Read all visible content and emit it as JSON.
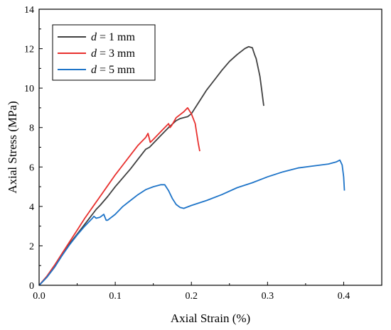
{
  "chart_data": {
    "type": "line",
    "xlabel": "Axial Strain (%)",
    "ylabel": "Axial Stress (MPa)",
    "xlim": [
      0.0,
      0.45
    ],
    "ylim": [
      0,
      14
    ],
    "xticks": [
      0.0,
      0.1,
      0.2,
      0.3,
      0.4
    ],
    "xtick_labels": [
      "0.0",
      "0.1",
      "0.2",
      "0.3",
      "0.4"
    ],
    "yticks": [
      0,
      2,
      4,
      6,
      8,
      10,
      12,
      14
    ],
    "ytick_labels": [
      "0",
      "2",
      "4",
      "6",
      "8",
      "10",
      "12",
      "14"
    ],
    "grid": false,
    "legend_position": "top-left",
    "series": [
      {
        "name_prefix": "d",
        "name_suffix": " = 1 mm",
        "color": "#404040",
        "x": [
          0.0,
          0.01,
          0.02,
          0.03,
          0.04,
          0.05,
          0.06,
          0.07,
          0.075,
          0.08,
          0.09,
          0.1,
          0.11,
          0.12,
          0.125,
          0.13,
          0.14,
          0.145,
          0.15,
          0.16,
          0.17,
          0.18,
          0.185,
          0.19,
          0.195,
          0.2,
          0.21,
          0.22,
          0.23,
          0.24,
          0.25,
          0.26,
          0.27,
          0.275,
          0.28,
          0.283,
          0.285,
          0.29,
          0.292,
          0.294,
          0.295
        ],
        "y": [
          0.0,
          0.4,
          0.9,
          1.5,
          2.1,
          2.6,
          3.1,
          3.6,
          3.85,
          4.05,
          4.5,
          5.0,
          5.45,
          5.9,
          6.15,
          6.4,
          6.9,
          7.0,
          7.2,
          7.6,
          8.0,
          8.35,
          8.45,
          8.5,
          8.55,
          8.7,
          9.3,
          9.9,
          10.4,
          10.9,
          11.35,
          11.7,
          12.0,
          12.1,
          12.05,
          11.7,
          11.5,
          10.6,
          10.0,
          9.4,
          9.1
        ]
      },
      {
        "name_prefix": "d",
        "name_suffix": " = 3 mm",
        "color": "#e8302e",
        "x": [
          0.0,
          0.01,
          0.02,
          0.03,
          0.04,
          0.05,
          0.06,
          0.07,
          0.08,
          0.09,
          0.1,
          0.11,
          0.12,
          0.13,
          0.14,
          0.143,
          0.146,
          0.15,
          0.16,
          0.17,
          0.172,
          0.174,
          0.18,
          0.19,
          0.195,
          0.2,
          0.203,
          0.205,
          0.207,
          0.209,
          0.211
        ],
        "y": [
          0.0,
          0.45,
          1.0,
          1.6,
          2.2,
          2.8,
          3.4,
          3.95,
          4.5,
          5.05,
          5.6,
          6.1,
          6.6,
          7.1,
          7.5,
          7.7,
          7.25,
          7.4,
          7.8,
          8.2,
          8.0,
          8.1,
          8.5,
          8.8,
          9.0,
          8.7,
          8.4,
          8.2,
          7.7,
          7.2,
          6.8
        ]
      },
      {
        "name_prefix": "d",
        "name_suffix": " = 5 mm",
        "color": "#1e74c8",
        "x": [
          0.0,
          0.01,
          0.02,
          0.03,
          0.04,
          0.05,
          0.06,
          0.07,
          0.072,
          0.075,
          0.08,
          0.085,
          0.088,
          0.09,
          0.1,
          0.11,
          0.12,
          0.13,
          0.14,
          0.15,
          0.16,
          0.165,
          0.17,
          0.175,
          0.18,
          0.185,
          0.19,
          0.2,
          0.22,
          0.24,
          0.26,
          0.28,
          0.3,
          0.32,
          0.34,
          0.36,
          0.38,
          0.39,
          0.395,
          0.398,
          0.4,
          0.401
        ],
        "y": [
          0.0,
          0.4,
          0.9,
          1.5,
          2.05,
          2.55,
          3.0,
          3.4,
          3.5,
          3.4,
          3.45,
          3.6,
          3.3,
          3.3,
          3.6,
          4.0,
          4.3,
          4.6,
          4.85,
          5.0,
          5.1,
          5.1,
          4.8,
          4.4,
          4.1,
          3.95,
          3.9,
          4.05,
          4.3,
          4.6,
          4.95,
          5.2,
          5.5,
          5.75,
          5.95,
          6.05,
          6.15,
          6.25,
          6.35,
          6.1,
          5.5,
          4.8
        ]
      }
    ]
  }
}
